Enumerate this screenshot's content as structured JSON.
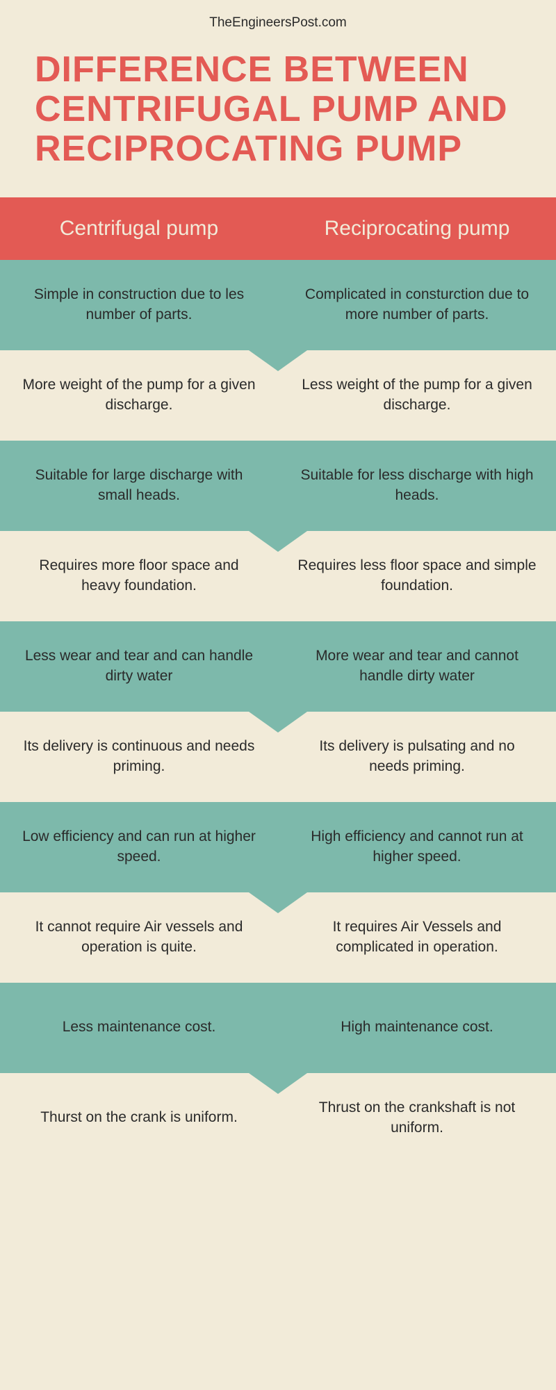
{
  "site_name": "TheEngineersPost.com",
  "title": "DIFFERENCE BETWEEN CENTRIFUGAL PUMP AND RECIPROCATING PUMP",
  "colors": {
    "accent": "#e35a54",
    "teal": "#7db9ab",
    "cream": "#f2ebd9",
    "text": "#2a2a2a"
  },
  "columns": {
    "left": "Centrifugal pump",
    "right": "Reciprocating pump"
  },
  "rows": [
    {
      "left": "Simple in construction due to les number of parts.",
      "right": "Complicated in consturction due to more number of parts."
    },
    {
      "left": "More weight of the pump for a given discharge.",
      "right": "Less weight of the pump for a given discharge."
    },
    {
      "left": "Suitable for large discharge with small heads.",
      "right": "Suitable for less discharge with high heads."
    },
    {
      "left": "Requires more floor space and heavy foundation.",
      "right": "Requires less floor space and simple foundation."
    },
    {
      "left": "Less wear and tear and can handle dirty water",
      "right": "More wear and tear and cannot handle dirty water"
    },
    {
      "left": "Its delivery is continuous and needs priming.",
      "right": "Its delivery is pulsating and no needs priming."
    },
    {
      "left": "Low efficiency and can run at higher speed.",
      "right": "High efficiency and cannot run at higher speed."
    },
    {
      "left": "It cannot require Air vessels and operation is quite.",
      "right": "It requires Air Vessels and complicated in operation."
    },
    {
      "left": "Less maintenance cost.",
      "right": "High maintenance cost."
    },
    {
      "left": "Thurst on the crank is uniform.",
      "right": "Thrust on the crankshaft is not uniform."
    }
  ]
}
